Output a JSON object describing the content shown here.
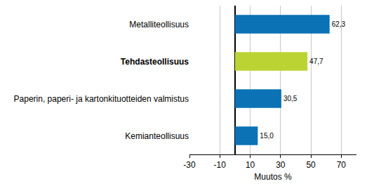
{
  "chart_data": {
    "type": "bar",
    "orientation": "horizontal",
    "categories": [
      "Metalliteollisuus",
      "Tehdasteollisuus",
      "Paperin, paperi- ja kartonkituotteiden valmistus",
      "Kemianteollisuus"
    ],
    "values": [
      62.3,
      47.7,
      30.5,
      15.0
    ],
    "value_labels": [
      "62,3",
      "47,7",
      "30,5",
      "15,0"
    ],
    "data_labels": true,
    "colors": [
      "#0a72b5",
      "#bcd433",
      "#0a72b5",
      "#0a72b5"
    ],
    "xlabel": "Muutos %",
    "xlim": [
      -30,
      80
    ],
    "xticks": [
      -30,
      -10,
      10,
      30,
      50,
      70
    ],
    "grid": true
  }
}
